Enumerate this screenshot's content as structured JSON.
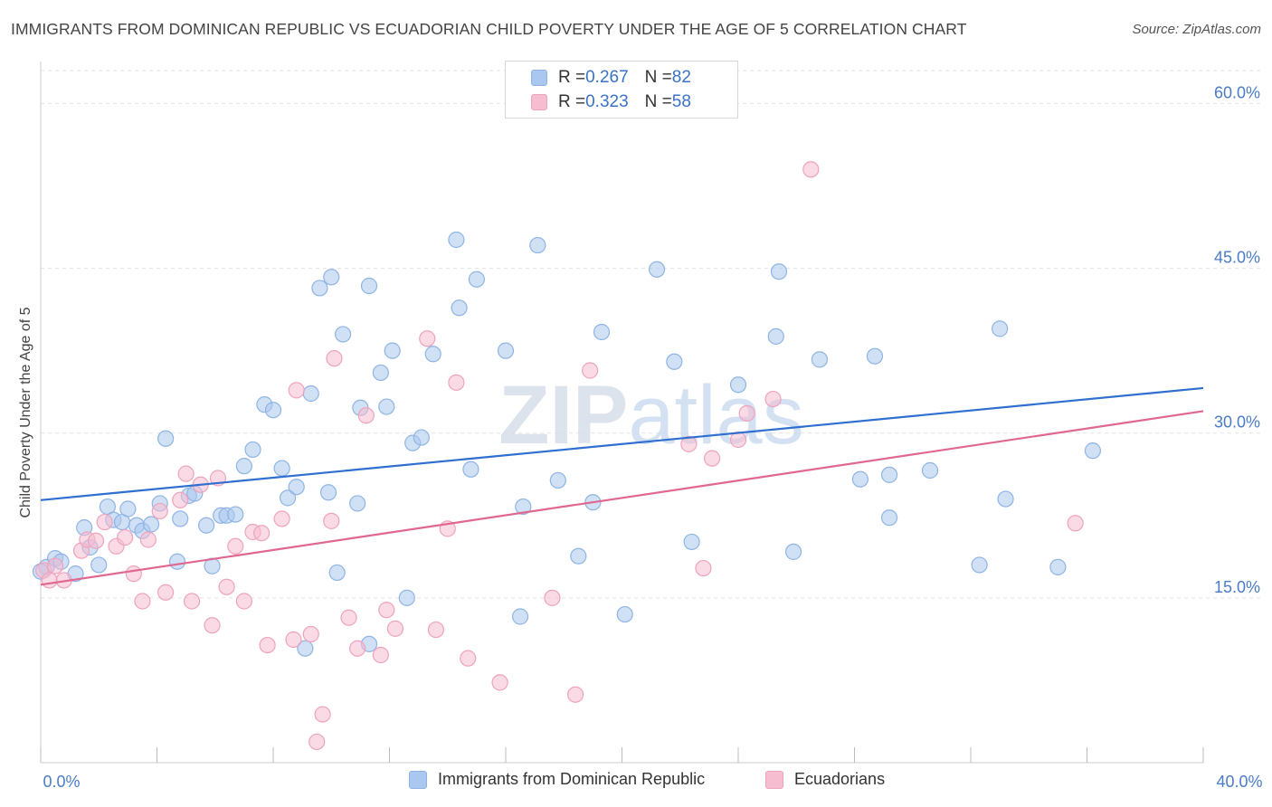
{
  "title": "IMMIGRANTS FROM DOMINICAN REPUBLIC VS ECUADORIAN CHILD POVERTY UNDER THE AGE OF 5 CORRELATION CHART",
  "source": "Source: ZipAtlas.com",
  "watermark": "ZIPatlas",
  "legend_top": {
    "rows": [
      {
        "r_label": "R = ",
        "r_value": "0.267",
        "n_label": "N = ",
        "n_value": "82"
      },
      {
        "r_label": "R = ",
        "r_value": "0.323",
        "n_label": "N = ",
        "n_value": "58"
      }
    ]
  },
  "legend_bottom": {
    "items": [
      "Immigrants from Dominican Republic",
      "Ecuadorians"
    ]
  },
  "colors": {
    "blue_fill": "#aac8ef",
    "blue_stroke": "#8fb4e3",
    "blue_line": "#2e6fd0",
    "pink_fill": "#f6bcd0",
    "pink_stroke": "#eea3bd",
    "pink_line": "#e0678f",
    "tick_text": "#4a7cc7",
    "grid": "#e3e3e3"
  },
  "chart_data": {
    "type": "scatter",
    "title": "IMMIGRANTS FROM DOMINICAN REPUBLIC VS ECUADORIAN CHILD POVERTY UNDER THE AGE OF 5 CORRELATION CHART",
    "xlabel": "",
    "ylabel": "Child Poverty Under the Age of 5",
    "xlim": [
      0,
      40
    ],
    "ylim": [
      0,
      63
    ],
    "x_tick_labels": [
      "0.0%",
      "40.0%"
    ],
    "y_ticks": [
      15,
      30,
      45,
      60
    ],
    "y_tick_labels": [
      "15.0%",
      "30.0%",
      "45.0%",
      "60.0%"
    ],
    "grid": true,
    "legend_position": "top-center",
    "series": [
      {
        "name": "Immigrants from Dominican Republic",
        "points": [
          [
            0.2,
            17.8
          ],
          [
            0.5,
            18.6
          ],
          [
            0.7,
            18.3
          ],
          [
            1.2,
            17.2
          ],
          [
            1.5,
            21.4
          ],
          [
            1.7,
            19.6
          ],
          [
            2.0,
            18.0
          ],
          [
            2.3,
            23.3
          ],
          [
            2.5,
            22.1
          ],
          [
            2.8,
            21.9
          ],
          [
            3.0,
            23.1
          ],
          [
            3.3,
            21.6
          ],
          [
            3.5,
            21.1
          ],
          [
            3.8,
            21.7
          ],
          [
            4.1,
            23.6
          ],
          [
            4.3,
            29.5
          ],
          [
            4.7,
            18.3
          ],
          [
            4.8,
            22.2
          ],
          [
            5.1,
            24.3
          ],
          [
            5.3,
            24.5
          ],
          [
            5.7,
            21.6
          ],
          [
            5.9,
            17.9
          ],
          [
            6.2,
            22.5
          ],
          [
            6.4,
            22.5
          ],
          [
            6.7,
            22.6
          ],
          [
            7.0,
            27.0
          ],
          [
            7.3,
            28.5
          ],
          [
            7.7,
            32.6
          ],
          [
            8.0,
            32.1
          ],
          [
            8.3,
            26.8
          ],
          [
            8.5,
            24.1
          ],
          [
            8.8,
            25.1
          ],
          [
            9.1,
            10.4
          ],
          [
            9.3,
            33.6
          ],
          [
            9.6,
            43.2
          ],
          [
            9.9,
            24.6
          ],
          [
            10.0,
            44.2
          ],
          [
            10.2,
            17.3
          ],
          [
            10.4,
            39.0
          ],
          [
            10.9,
            23.6
          ],
          [
            11.0,
            32.3
          ],
          [
            11.3,
            43.4
          ],
          [
            11.3,
            10.8
          ],
          [
            11.7,
            35.5
          ],
          [
            11.9,
            32.4
          ],
          [
            12.1,
            37.5
          ],
          [
            12.6,
            15.0
          ],
          [
            12.8,
            29.1
          ],
          [
            13.1,
            29.6
          ],
          [
            13.5,
            37.2
          ],
          [
            14.3,
            47.6
          ],
          [
            14.4,
            41.4
          ],
          [
            14.8,
            26.7
          ],
          [
            15.0,
            44.0
          ],
          [
            16.0,
            37.5
          ],
          [
            16.5,
            13.3
          ],
          [
            16.6,
            23.3
          ],
          [
            17.1,
            47.1
          ],
          [
            17.8,
            25.7
          ],
          [
            18.5,
            18.8
          ],
          [
            19.0,
            23.7
          ],
          [
            19.3,
            39.2
          ],
          [
            20.1,
            13.5
          ],
          [
            21.2,
            44.9
          ],
          [
            21.8,
            36.5
          ],
          [
            22.4,
            20.1
          ],
          [
            24.0,
            34.4
          ],
          [
            25.3,
            38.8
          ],
          [
            25.4,
            44.7
          ],
          [
            25.9,
            19.2
          ],
          [
            26.8,
            36.7
          ],
          [
            28.2,
            25.8
          ],
          [
            28.7,
            37.0
          ],
          [
            29.2,
            22.3
          ],
          [
            29.2,
            26.2
          ],
          [
            30.6,
            26.6
          ],
          [
            32.3,
            18.0
          ],
          [
            33.0,
            39.5
          ],
          [
            33.2,
            24.0
          ],
          [
            35.0,
            17.8
          ],
          [
            36.2,
            28.4
          ],
          [
            0.0,
            17.4
          ]
        ]
      },
      {
        "name": "Ecuadorians",
        "points": [
          [
            0.1,
            17.5
          ],
          [
            0.3,
            16.6
          ],
          [
            0.5,
            17.9
          ],
          [
            0.8,
            16.6
          ],
          [
            1.4,
            19.3
          ],
          [
            1.6,
            20.3
          ],
          [
            1.9,
            20.2
          ],
          [
            2.2,
            21.9
          ],
          [
            2.6,
            19.7
          ],
          [
            2.9,
            20.5
          ],
          [
            3.2,
            17.2
          ],
          [
            3.5,
            14.7
          ],
          [
            3.7,
            20.3
          ],
          [
            4.1,
            22.9
          ],
          [
            4.3,
            15.5
          ],
          [
            4.8,
            23.9
          ],
          [
            5.0,
            26.3
          ],
          [
            5.2,
            14.7
          ],
          [
            5.5,
            25.3
          ],
          [
            5.9,
            12.5
          ],
          [
            6.1,
            25.9
          ],
          [
            6.4,
            16.0
          ],
          [
            6.7,
            19.7
          ],
          [
            7.0,
            14.7
          ],
          [
            7.3,
            21.0
          ],
          [
            7.6,
            20.9
          ],
          [
            7.8,
            10.7
          ],
          [
            8.3,
            22.2
          ],
          [
            8.7,
            11.2
          ],
          [
            8.8,
            33.9
          ],
          [
            9.3,
            11.7
          ],
          [
            9.5,
            1.9
          ],
          [
            9.7,
            4.4
          ],
          [
            10.0,
            22.0
          ],
          [
            10.1,
            36.8
          ],
          [
            10.6,
            13.2
          ],
          [
            10.9,
            10.4
          ],
          [
            11.2,
            31.6
          ],
          [
            11.7,
            9.8
          ],
          [
            11.9,
            13.9
          ],
          [
            12.2,
            12.2
          ],
          [
            13.3,
            38.6
          ],
          [
            13.6,
            12.1
          ],
          [
            14.0,
            21.3
          ],
          [
            14.3,
            34.6
          ],
          [
            14.7,
            9.5
          ],
          [
            15.8,
            7.3
          ],
          [
            17.6,
            15.0
          ],
          [
            18.4,
            6.2
          ],
          [
            18.9,
            35.7
          ],
          [
            22.3,
            29.0
          ],
          [
            22.8,
            17.7
          ],
          [
            23.1,
            27.7
          ],
          [
            24.0,
            29.4
          ],
          [
            24.3,
            31.8
          ],
          [
            25.2,
            33.1
          ],
          [
            26.5,
            54.0
          ],
          [
            35.6,
            21.8
          ]
        ]
      }
    ],
    "trend_lines": [
      {
        "series": "Immigrants from Dominican Republic",
        "x": [
          0,
          40
        ],
        "y": [
          23.9,
          34.1
        ]
      },
      {
        "series": "Ecuadorians",
        "x": [
          0,
          40
        ],
        "y": [
          16.2,
          32.0
        ]
      }
    ]
  }
}
